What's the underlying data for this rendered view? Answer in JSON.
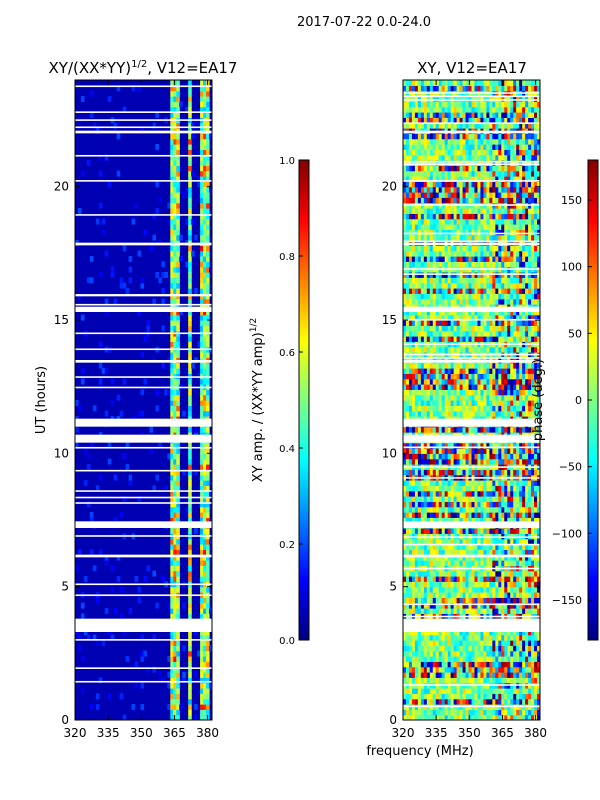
{
  "figure": {
    "suptitle": "2017-07-22 0.0-24.0",
    "xlabel": "frequency (MHz)"
  },
  "colors": {
    "jet": [
      "#000080",
      "#0000ff",
      "#0080ff",
      "#00ffff",
      "#80ff80",
      "#ffff00",
      "#ff8000",
      "#ff0000",
      "#800000"
    ]
  },
  "chart_data": [
    {
      "type": "heatmap",
      "title": "XY/(XX*YY)",
      "title_sup": "1/2",
      "title_suffix": ", V12=EA17",
      "ylabel": "UT (hours)",
      "x_ticks": [
        320,
        335,
        350,
        365,
        380
      ],
      "y_ticks": [
        0,
        5,
        10,
        15,
        20
      ],
      "xlim": [
        320,
        382
      ],
      "ylim": [
        0,
        24
      ],
      "colorbar": {
        "label": "XY amp. / (XX*YY amp)",
        "label_sup": "1/2",
        "range": [
          0.0,
          1.0
        ],
        "ticks": [
          "0.0",
          "0.2",
          "0.4",
          "0.6",
          "0.8",
          "1.0"
        ]
      },
      "structure": {
        "background_value": 0.05,
        "bright_bands_MHz": [
          [
            362.5,
            364.5
          ],
          [
            365,
            367.5
          ],
          [
            371,
            373
          ],
          [
            377,
            380
          ]
        ],
        "band_value_range": [
          0.3,
          0.9
        ],
        "gap_hours": [
          [
            3.3,
            3.8
          ],
          [
            7.2,
            7.45
          ],
          [
            10.4,
            10.7
          ],
          [
            11.0,
            11.3
          ],
          [
            15.3,
            15.5
          ],
          [
            6.1,
            6.2
          ],
          [
            13.4,
            13.5
          ],
          [
            17.8,
            17.9
          ],
          [
            22.0,
            22.1
          ]
        ]
      }
    },
    {
      "type": "heatmap",
      "title": "XY, V12=EA17",
      "x_ticks": [
        320,
        335,
        350,
        365,
        380
      ],
      "y_ticks": [
        0,
        5,
        10,
        15,
        20
      ],
      "xlim": [
        320,
        382
      ],
      "ylim": [
        0,
        24
      ],
      "colorbar": {
        "label": "phase (deg.)",
        "range": [
          -180,
          180
        ],
        "ticks": [
          "−150",
          "−100",
          "−50",
          "0",
          "50",
          "100",
          "150"
        ]
      },
      "structure": {
        "value_range": [
          -180,
          180
        ],
        "dominant_value": 0,
        "gap_hours": [
          [
            3.3,
            3.8
          ],
          [
            7.2,
            7.45
          ],
          [
            10.4,
            10.7
          ],
          [
            11.0,
            11.3
          ],
          [
            15.3,
            15.5
          ],
          [
            6.1,
            6.2
          ],
          [
            13.4,
            13.5
          ],
          [
            17.8,
            17.9
          ],
          [
            22.0,
            22.1
          ]
        ]
      }
    }
  ]
}
